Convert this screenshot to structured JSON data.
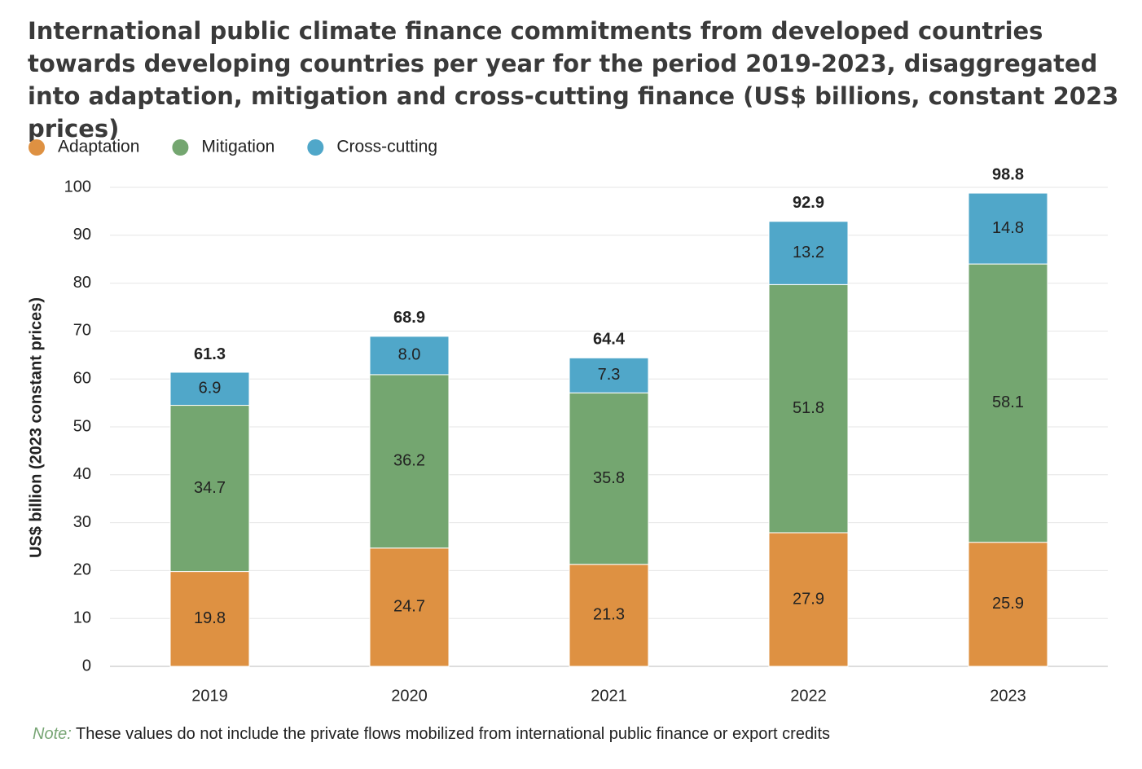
{
  "chart_data": {
    "type": "stacked-bar",
    "title": "International public climate finance commitments from developed countries towards developing countries per year for the period 2019-2023, disaggregated into adaptation, mitigation and cross-cutting finance (US$ billions, constant 2023 prices)",
    "y_label": "US$ billion (2023 constant prices)",
    "categories": [
      "2019",
      "2020",
      "2021",
      "2022",
      "2023"
    ],
    "series": [
      {
        "name": "Adaptation",
        "color": "#de9142",
        "values": [
          19.8,
          24.7,
          21.3,
          27.9,
          25.9
        ]
      },
      {
        "name": "Mitigation",
        "color": "#74a670",
        "values": [
          34.7,
          36.2,
          35.8,
          51.8,
          58.1
        ]
      },
      {
        "name": "Cross-cutting",
        "color": "#50a7c9",
        "values": [
          6.9,
          8.0,
          7.3,
          13.2,
          14.8
        ],
        "value_labels": [
          "6.9",
          "8.0",
          "7.3",
          "13.2",
          "14.8"
        ]
      }
    ],
    "totals": [
      61.3,
      68.9,
      64.4,
      92.9,
      98.8
    ],
    "ylim": [
      0,
      100
    ],
    "yticks": [
      0,
      10,
      20,
      30,
      40,
      50,
      60,
      70,
      80,
      90,
      100
    ],
    "grid": true,
    "legend": "top-left",
    "note_label": "Note:",
    "note": "These values do not include the private flows mobilized from international public finance or export credits"
  }
}
